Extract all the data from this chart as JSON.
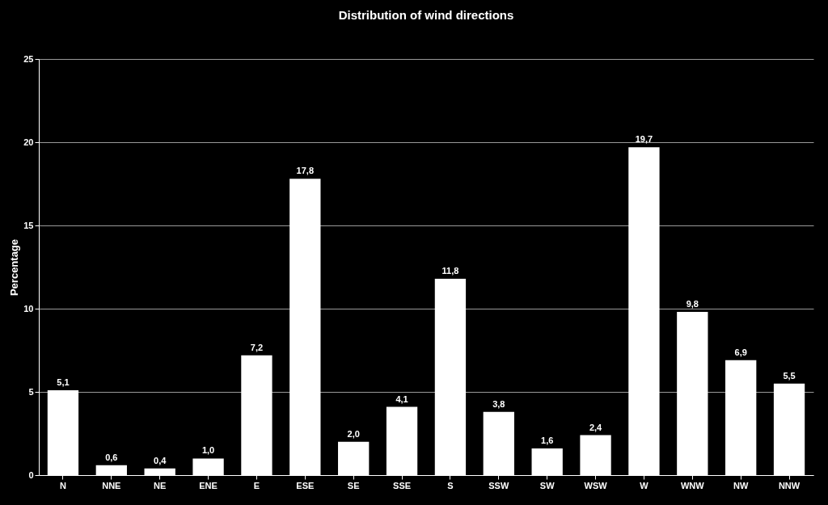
{
  "chart_data": {
    "type": "bar",
    "title": "Distribution of wind directions",
    "ylabel": "Percentage",
    "categories": [
      "N",
      "NNE",
      "NE",
      "ENE",
      "E",
      "ESE",
      "SE",
      "SSE",
      "S",
      "SSW",
      "SW",
      "WSW",
      "W",
      "WNW",
      "NW",
      "NNW"
    ],
    "values": [
      5.1,
      0.6,
      0.4,
      1.0,
      7.2,
      17.8,
      2.0,
      4.1,
      11.8,
      3.8,
      1.6,
      2.4,
      19.7,
      9.8,
      6.9,
      5.5
    ],
    "value_labels": [
      "5,1",
      "0,6",
      "0,4",
      "1,0",
      "7,2",
      "17,8",
      "2,0",
      "4,1",
      "11,8",
      "3,8",
      "1,6",
      "2,4",
      "19,7",
      "9,8",
      "6,9",
      "5,5"
    ],
    "color": "#ffffff",
    "ylim": [
      0,
      25
    ],
    "yticks": [
      0,
      5,
      10,
      15,
      20,
      25
    ],
    "grid": "y"
  }
}
